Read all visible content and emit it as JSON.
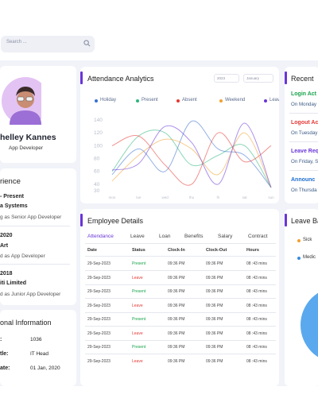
{
  "search": {
    "placeholder": "Search ..."
  },
  "profile": {
    "name": "helley Kannes",
    "role": "App Developer"
  },
  "experience": {
    "title": "rience",
    "entries": [
      {
        "period": "- Present",
        "company": "a Systems",
        "role": "g as Senior App Developer"
      },
      {
        "period": "2020",
        "company": "Art",
        "role": "d as App Developer"
      },
      {
        "period": "2018",
        "company": "iti Limited",
        "role": "d as Junior App Developer"
      }
    ]
  },
  "personal": {
    "title": "onal Information",
    "rows": [
      {
        "label": ":",
        "value": "1036"
      },
      {
        "label": "tle:",
        "value": "IT Head"
      },
      {
        "label": "ate:",
        "value": "01 Jan, 2020"
      }
    ]
  },
  "attendance": {
    "title": "Attendance Analytics",
    "year_select": "2023",
    "month_select": "January",
    "legend": [
      {
        "name": "Holiday",
        "color": "#3b6fd1"
      },
      {
        "name": "Present",
        "color": "#2eb67d"
      },
      {
        "name": "Absent",
        "color": "#e53935"
      },
      {
        "name": "Weekend",
        "color": "#f2a033"
      },
      {
        "name": "Leave",
        "color": "#6a35d8"
      }
    ]
  },
  "chart_data": {
    "type": "line",
    "title": "Attendance Analytics",
    "x": [
      "mon",
      "tue",
      "wed",
      "thu",
      "fri",
      "sat",
      "sun"
    ],
    "y_ticks": [
      30,
      40,
      60,
      80,
      100,
      120,
      140
    ],
    "ylim": [
      30,
      140
    ],
    "legend_position": "top",
    "series": [
      {
        "name": "Holiday",
        "color": "#3b6fd1",
        "values": [
          55,
          95,
          60,
          138,
          95,
          85,
          35
        ]
      },
      {
        "name": "Present",
        "color": "#2eb67d",
        "values": [
          60,
          115,
          120,
          70,
          85,
          100,
          35
        ]
      },
      {
        "name": "Absent",
        "color": "#e53935",
        "values": [
          100,
          115,
          70,
          40,
          120,
          75,
          100
        ]
      },
      {
        "name": "Weekend",
        "color": "#f2a033",
        "values": [
          45,
          85,
          110,
          95,
          55,
          120,
          35
        ]
      },
      {
        "name": "Leave",
        "color": "#6a35d8",
        "values": [
          62,
          72,
          130,
          105,
          40,
          135,
          35
        ]
      }
    ]
  },
  "employee": {
    "title": "Employee Details",
    "tabs": [
      "Attendance",
      "Leave",
      "Loan",
      "Benefits",
      "Salary",
      "Contract"
    ],
    "headers": [
      "Date",
      "Status",
      "Clock-In",
      "Clock-Out",
      "Hours"
    ],
    "rows": [
      {
        "date": "29-Sep-2023",
        "status": "Present",
        "in": "09:36 PM",
        "out": "09:36 PM",
        "hours": "08 :43 mins"
      },
      {
        "date": "29-Sep-2023",
        "status": "Leave",
        "in": "09:36 PM",
        "out": "09:36 PM",
        "hours": "08 :43 mins"
      },
      {
        "date": "29-Sep-2023",
        "status": "Present",
        "in": "09:36 PM",
        "out": "09:36 PM",
        "hours": "08 :43 mins"
      },
      {
        "date": "29-Sep-2023",
        "status": "Leave",
        "in": "09:36 PM",
        "out": "09:36 PM",
        "hours": "08 :43 mins"
      },
      {
        "date": "29-Sep-2023",
        "status": "Present",
        "in": "09:36 PM",
        "out": "09:36 PM",
        "hours": "08 :43 mins"
      },
      {
        "date": "29-Sep-2023",
        "status": "Leave",
        "in": "09:36 PM",
        "out": "09:36 PM",
        "hours": "08 :43 mins"
      },
      {
        "date": "29-Sep-2023",
        "status": "Present",
        "in": "09:36 PM",
        "out": "09:36 PM",
        "hours": "08 :43 mins"
      },
      {
        "date": "29-Sep-2023",
        "status": "Leave",
        "in": "09:36 PM",
        "out": "09:36 PM",
        "hours": "08 :43 mins"
      }
    ]
  },
  "recent": {
    "title": "Recent",
    "items": [
      {
        "title": "Login Act",
        "sub": "On Monday",
        "color": "#19a34a"
      },
      {
        "title": "Logout Ac",
        "sub": "On Tuesday",
        "color": "#e53935"
      },
      {
        "title": "Leave Req",
        "sub": "On Friday, S",
        "color": "#6a35d8"
      },
      {
        "title": "Announc",
        "sub": "On Thursda",
        "color": "#1f6fd1"
      }
    ]
  },
  "leave_balance": {
    "title": "Leave Ba",
    "legend": [
      {
        "name": "Sick",
        "color": "#f2a033"
      },
      {
        "name": "Medic",
        "color": "#3b8be0"
      }
    ],
    "pie_color": "#5aa9ee"
  }
}
